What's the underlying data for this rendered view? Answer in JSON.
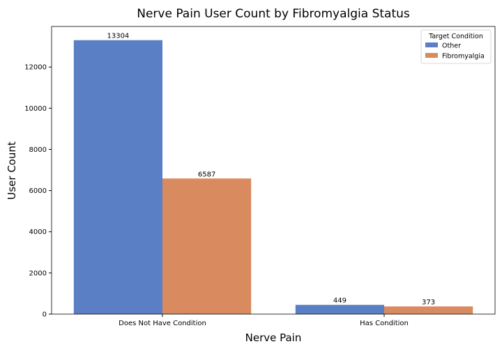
{
  "chart_data": {
    "type": "bar",
    "title": "Nerve Pain User Count by Fibromyalgia Status",
    "xlabel": "Nerve Pain",
    "ylabel": "User Count",
    "categories": [
      "Does Not Have Condition",
      "Has Condition"
    ],
    "series": [
      {
        "name": "Other",
        "values": [
          13304,
          449
        ],
        "color": "#5b7fc4"
      },
      {
        "name": "Fibromyalgia",
        "values": [
          6587,
          373
        ],
        "color": "#d98b5f"
      }
    ],
    "ylim": [
      0,
      13970
    ],
    "yticks": [
      0,
      2000,
      4000,
      6000,
      8000,
      10000,
      12000
    ],
    "grid": false,
    "legend": {
      "title": "Target Condition",
      "placement": "top-right"
    }
  }
}
